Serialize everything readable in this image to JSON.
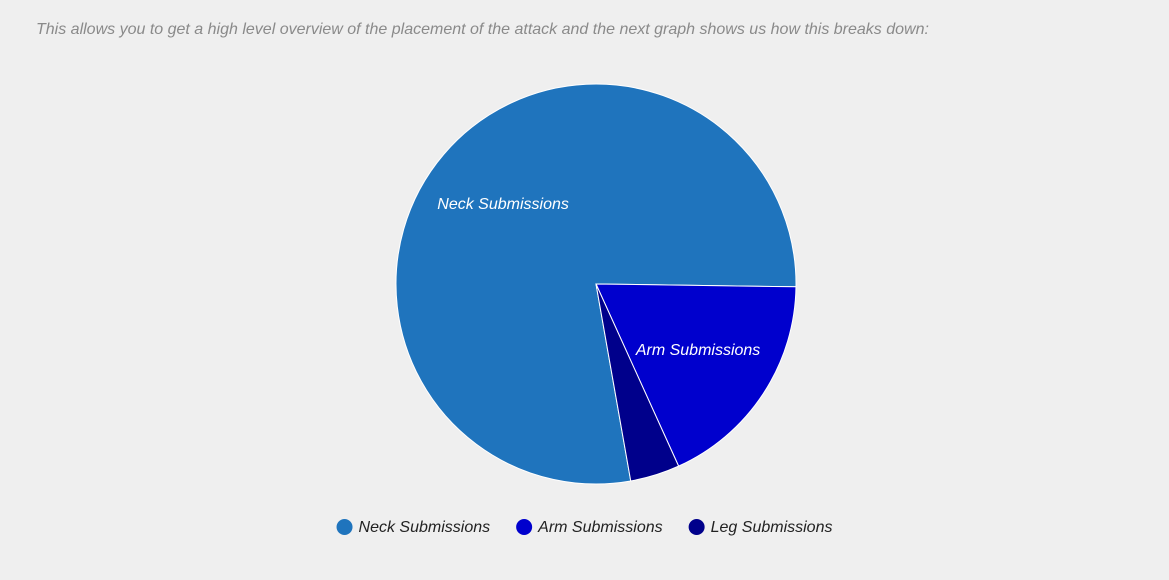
{
  "intro": "This allows you to get a high level overview of the placement of the attack and the next graph shows us how this breaks down:",
  "chart_data": {
    "type": "pie",
    "categories": [
      "Neck Submissions",
      "Arm Submissions",
      "Leg Submissions"
    ],
    "values": [
      78,
      18,
      4
    ],
    "colors": [
      "#1f74bd",
      "#0000cd",
      "#00008b"
    ],
    "legend": "bottom"
  }
}
